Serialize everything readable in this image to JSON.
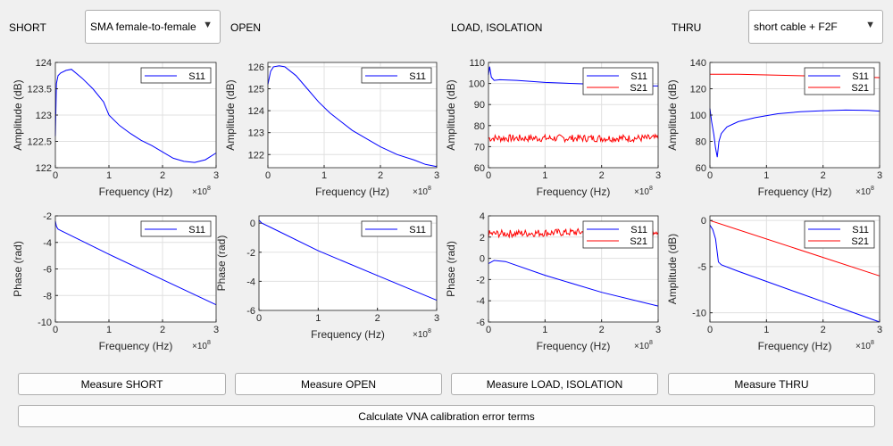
{
  "sections": {
    "short": {
      "label": "SHORT",
      "dropdown": "SMA female-to-female"
    },
    "open": {
      "label": "OPEN"
    },
    "load": {
      "label": "LOAD, ISOLATION"
    },
    "thru": {
      "label": "THRU",
      "dropdown": "short cable + F2F"
    }
  },
  "buttons": {
    "measure_short": "Measure SHORT",
    "measure_open": "Measure OPEN",
    "measure_load": "Measure LOAD, ISOLATION",
    "measure_thru": "Measure THRU",
    "calculate": "Calculate VNA calibration error terms"
  },
  "colors": {
    "s11": "#0000ff",
    "s21": "#ff0000"
  },
  "chart_data": [
    {
      "type": "line",
      "id": "short-amp",
      "xlabel": "Frequency (Hz)",
      "ylabel": "Amplitude (dB)",
      "xexp": "8",
      "xlim": [
        0,
        3
      ],
      "ylim": [
        122,
        124
      ],
      "xticks": [
        0,
        1,
        2,
        3
      ],
      "yticks": [
        122,
        122.5,
        123,
        123.5,
        124
      ],
      "ytick_labels": [
        "122",
        "122.5",
        "123",
        "123.5",
        "124"
      ],
      "legend": "top-right",
      "grid": true,
      "series": [
        {
          "name": "S11",
          "color": "s11",
          "x": [
            0,
            0.02,
            0.05,
            0.1,
            0.2,
            0.3,
            0.5,
            0.7,
            0.9,
            1.0,
            1.2,
            1.4,
            1.6,
            1.8,
            2.0,
            2.2,
            2.4,
            2.6,
            2.8,
            3.0
          ],
          "y": [
            122.6,
            123.6,
            123.75,
            123.8,
            123.85,
            123.87,
            123.7,
            123.5,
            123.25,
            123.0,
            122.8,
            122.65,
            122.52,
            122.42,
            122.3,
            122.18,
            122.12,
            122.1,
            122.15,
            122.28
          ]
        }
      ]
    },
    {
      "type": "line",
      "id": "open-amp",
      "xlabel": "Frequency (Hz)",
      "ylabel": "Amplitude (dB)",
      "xexp": "8",
      "xlim": [
        0,
        3
      ],
      "ylim": [
        121.4,
        126.2
      ],
      "xticks": [
        0,
        1,
        2,
        3
      ],
      "yticks": [
        122,
        123,
        124,
        125,
        126
      ],
      "ytick_labels": [
        "122",
        "123",
        "124",
        "125",
        "126"
      ],
      "legend": "top-right",
      "grid": true,
      "series": [
        {
          "name": "S11",
          "color": "s11",
          "x": [
            0,
            0.05,
            0.1,
            0.2,
            0.3,
            0.5,
            0.7,
            0.9,
            1.1,
            1.3,
            1.5,
            1.7,
            2.0,
            2.3,
            2.6,
            2.8,
            3.0
          ],
          "y": [
            125.2,
            125.8,
            126.0,
            126.05,
            126.0,
            125.6,
            125.0,
            124.4,
            123.9,
            123.5,
            123.1,
            122.8,
            122.35,
            122.0,
            121.75,
            121.55,
            121.45
          ]
        }
      ]
    },
    {
      "type": "line",
      "id": "load-amp",
      "xlabel": "Frequency (Hz)",
      "ylabel": "Amplitude (dB)",
      "xexp": "8",
      "xlim": [
        0,
        3
      ],
      "ylim": [
        60,
        110
      ],
      "xticks": [
        0,
        1,
        2,
        3
      ],
      "yticks": [
        60,
        70,
        80,
        90,
        100,
        110
      ],
      "ytick_labels": [
        "60",
        "70",
        "80",
        "90",
        "100",
        "110"
      ],
      "legend": "top-right",
      "grid": true,
      "series": [
        {
          "name": "S11",
          "color": "s11",
          "x": [
            0,
            0.02,
            0.05,
            0.1,
            0.2,
            0.5,
            1.0,
            1.5,
            2.0,
            2.5,
            3.0
          ],
          "y": [
            104,
            108,
            103,
            101.5,
            101.8,
            101.5,
            100.5,
            100,
            99.5,
            99,
            98.8
          ]
        },
        {
          "name": "S21",
          "color": "s21",
          "noisy": true,
          "x": [
            0,
            3
          ],
          "y": [
            74,
            74
          ]
        }
      ]
    },
    {
      "type": "line",
      "id": "thru-amp",
      "xlabel": "Frequency (Hz)",
      "ylabel": "Amplitude (dB)",
      "xexp": "8",
      "xlim": [
        0,
        3
      ],
      "ylim": [
        60,
        140
      ],
      "xticks": [
        0,
        1,
        2,
        3
      ],
      "yticks": [
        60,
        80,
        100,
        120,
        140
      ],
      "ytick_labels": [
        "60",
        "80",
        "100",
        "120",
        "140"
      ],
      "legend": "top-right",
      "grid": true,
      "series": [
        {
          "name": "S11",
          "color": "s11",
          "x": [
            0,
            0.03,
            0.07,
            0.1,
            0.13,
            0.16,
            0.2,
            0.3,
            0.5,
            0.8,
            1.2,
            1.6,
            2.0,
            2.4,
            2.8,
            3.0
          ],
          "y": [
            105,
            95,
            85,
            75,
            68,
            80,
            86,
            91,
            95,
            98,
            101,
            102.5,
            103.3,
            103.8,
            103.5,
            103
          ]
        },
        {
          "name": "S21",
          "color": "s21",
          "x": [
            0,
            0.5,
            1.0,
            1.5,
            2.0,
            2.5,
            3.0
          ],
          "y": [
            131,
            131,
            130.5,
            130,
            129.5,
            129,
            128.5
          ]
        }
      ]
    },
    {
      "type": "line",
      "id": "short-phase",
      "xlabel": "Frequency (Hz)",
      "ylabel": "Phase (rad)",
      "xexp": "8",
      "xlim": [
        0,
        3
      ],
      "ylim": [
        -10,
        -2
      ],
      "xticks": [
        0,
        1,
        2,
        3
      ],
      "yticks": [
        -10,
        -8,
        -6,
        -4,
        -2
      ],
      "ytick_labels": [
        "-10",
        "-8",
        "-6",
        "-4",
        "-2"
      ],
      "legend": "top-right",
      "grid": true,
      "series": [
        {
          "name": "S11",
          "color": "s11",
          "x": [
            0,
            0.02,
            0.05,
            0.1,
            1.0,
            2.0,
            3.0
          ],
          "y": [
            -2.4,
            -2.8,
            -3.0,
            -3.1,
            -4.9,
            -6.8,
            -8.7
          ]
        }
      ]
    },
    {
      "type": "line",
      "id": "open-phase",
      "xlabel": "Frequency (Hz)",
      "ylabel": "Phase (rad)",
      "xexp": "8",
      "xlim": [
        0,
        3
      ],
      "ylim": [
        -6,
        0.5
      ],
      "xticks": [
        0,
        1,
        2,
        3
      ],
      "yticks": [
        -6,
        -4,
        -2,
        0
      ],
      "ytick_labels": [
        "-6",
        "-4",
        "-2",
        "0"
      ],
      "legend": "top-right",
      "grid": true,
      "series": [
        {
          "name": "S11",
          "color": "s11",
          "x": [
            0,
            0.05,
            0.2,
            1.0,
            2.0,
            3.0
          ],
          "y": [
            0.2,
            0.0,
            -0.3,
            -1.9,
            -3.6,
            -5.3
          ]
        }
      ]
    },
    {
      "type": "line",
      "id": "load-phase",
      "xlabel": "Frequency (Hz)",
      "ylabel": "Phase (rad)",
      "xexp": "8",
      "xlim": [
        0,
        3
      ],
      "ylim": [
        -6,
        4
      ],
      "xticks": [
        0,
        1,
        2,
        3
      ],
      "yticks": [
        -6,
        -4,
        -2,
        0,
        2,
        4
      ],
      "ytick_labels": [
        "-6",
        "-4",
        "-2",
        "0",
        "2",
        "4"
      ],
      "legend": "top-right",
      "grid": true,
      "series": [
        {
          "name": "S11",
          "color": "s11",
          "x": [
            0,
            0.1,
            0.3,
            1.0,
            2.0,
            3.0
          ],
          "y": [
            -0.5,
            -0.2,
            -0.3,
            -1.6,
            -3.2,
            -4.5
          ]
        },
        {
          "name": "S21",
          "color": "s21",
          "noisy": true,
          "x": [
            0,
            3
          ],
          "y": [
            2.3,
            2.6
          ]
        }
      ]
    },
    {
      "type": "line",
      "id": "thru-amp2",
      "xlabel": "Frequency (Hz)",
      "ylabel": "Amplitude (dB)",
      "xexp": "8",
      "xlim": [
        0,
        3
      ],
      "ylim": [
        -11,
        0.5
      ],
      "xticks": [
        0,
        1,
        2,
        3
      ],
      "yticks": [
        -10,
        -5,
        0
      ],
      "ytick_labels": [
        "-10",
        "-5",
        "0"
      ],
      "legend": "top-right",
      "grid": true,
      "series": [
        {
          "name": "S11",
          "color": "s11",
          "x": [
            0,
            0.05,
            0.1,
            0.15,
            0.2,
            0.5,
            1.0,
            1.5,
            2.0,
            2.5,
            3.0
          ],
          "y": [
            -0.5,
            -1.0,
            -2.0,
            -4.5,
            -4.8,
            -5.5,
            -6.6,
            -7.7,
            -8.8,
            -9.9,
            -11.0
          ]
        },
        {
          "name": "S21",
          "color": "s21",
          "x": [
            0,
            3
          ],
          "y": [
            0,
            -6.0
          ]
        }
      ]
    }
  ]
}
